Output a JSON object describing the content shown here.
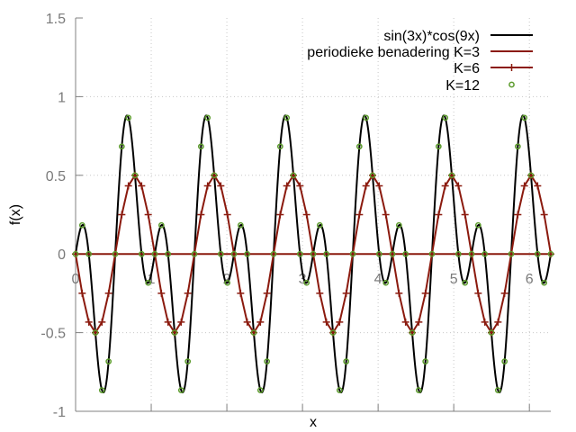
{
  "chart_data": {
    "type": "line",
    "title": "",
    "xlabel": "x",
    "ylabel": "f(x)",
    "xlim": [
      0,
      6.2832
    ],
    "ylim": [
      -1,
      1.5
    ],
    "x_ticks": [
      0,
      1,
      2,
      3,
      4,
      5,
      6
    ],
    "x_tick_labels": [
      "0",
      "1",
      "2",
      "3",
      "4",
      "5",
      "6"
    ],
    "y_ticks": [
      -1,
      -0.5,
      0,
      0.5,
      1,
      1.5
    ],
    "y_tick_labels": [
      "-1",
      "-0.5",
      "0",
      "0.5",
      "1",
      "1.5"
    ],
    "grid": true,
    "legend_position": "top-right",
    "series": [
      {
        "name": "sin(3x)*cos(9x)",
        "color": "#000000",
        "style": "line",
        "function": "sin(3x)*cos(9x)",
        "x_range": [
          0,
          6.2832
        ]
      },
      {
        "name": "periodieke benadering K=3",
        "color": "#8b1a0e",
        "style": "line",
        "x": [
          0,
          6.2832
        ],
        "y": [
          0,
          0
        ]
      },
      {
        "name": "K=6",
        "color": "#8b1a0e",
        "style": "line+plus",
        "function": "-0.5*sin(6x)",
        "samples": 72,
        "x_range": [
          0,
          6.2832
        ]
      },
      {
        "name": "K=12",
        "color": "#5a9a2a",
        "style": "circle",
        "function": "sin(3x)*cos(9x)",
        "samples": 72,
        "x_range": [
          0,
          6.2832
        ]
      }
    ]
  }
}
